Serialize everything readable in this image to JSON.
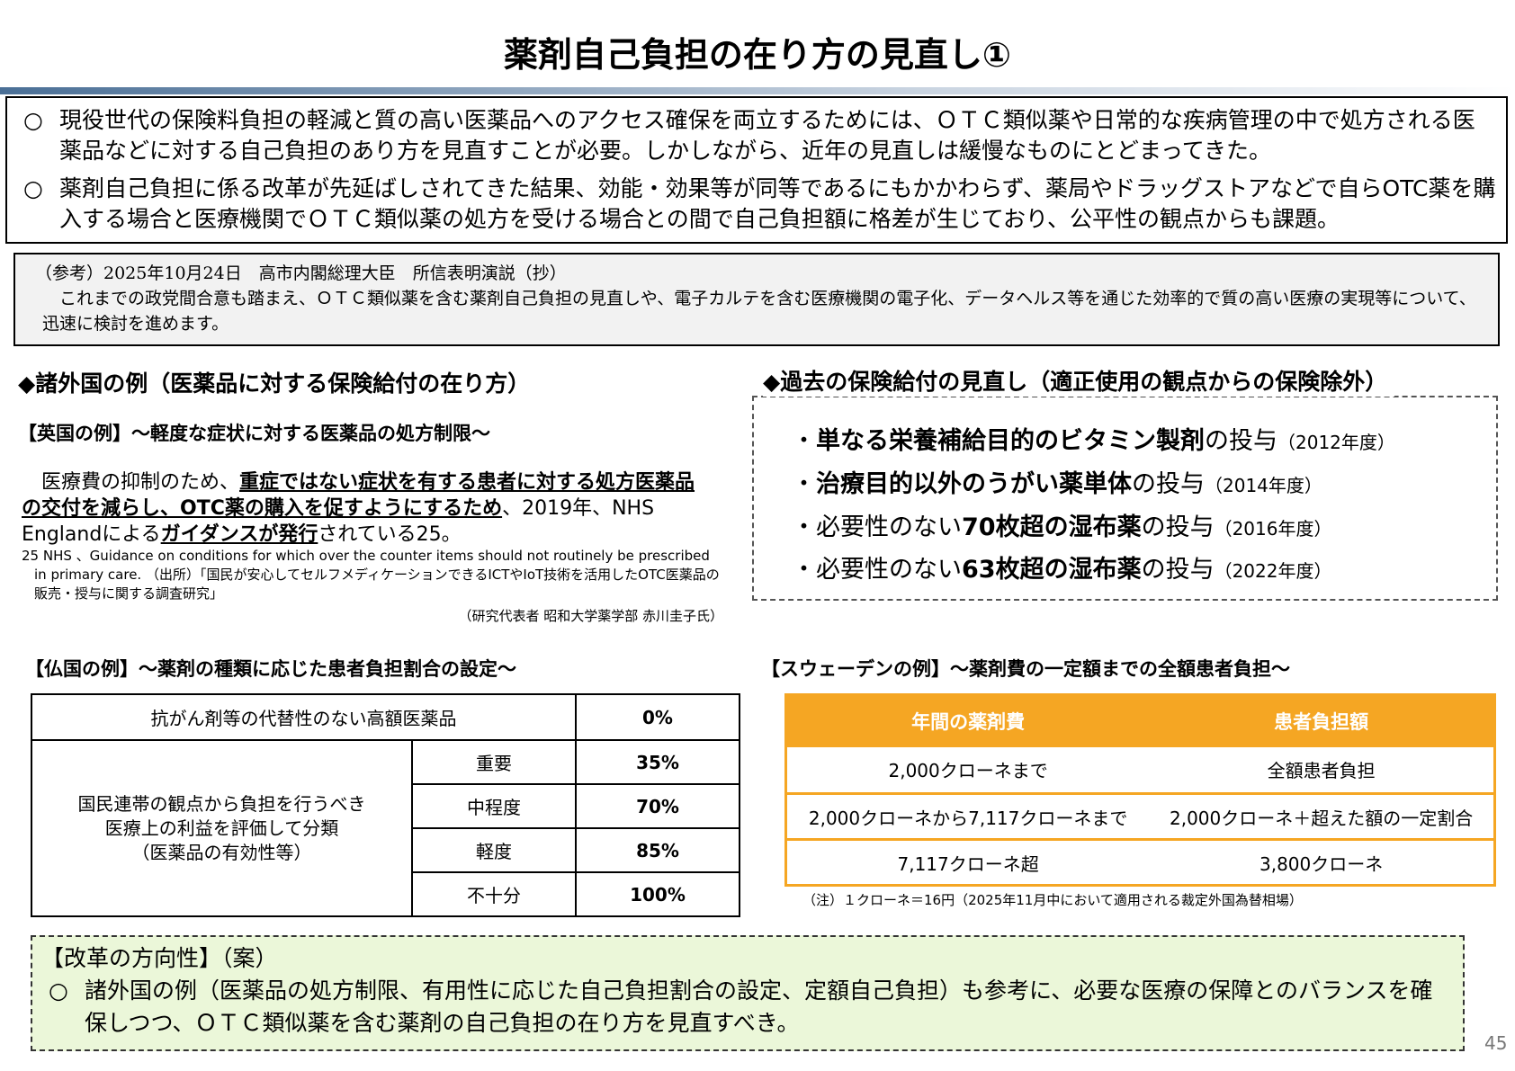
{
  "title": "薬剤自己負担の在り方の見直し①",
  "summary": {
    "bullet": "○",
    "items": [
      "現役世代の保険料負担の軽減と質の高い医薬品へのアクセス確保を両立するためには、ＯＴＣ類似薬や日常的な疾病管理の中で処方される医薬品などに対する自己負担のあり方を見直すことが必要。しかしながら、近年の見直しは緩慢なものにとどまってきた。",
      "薬剤自己負担に係る改革が先延ばしされてきた結果、効能・効果等が同等であるにもかかわらず、薬局やドラッグストアなどで自らOTC薬を購入する場合と医療機関でＯＴＣ類似薬の処方を受ける場合との間で自己負担額に格差が生じており、公平性の観点からも課題。"
    ]
  },
  "reference": {
    "header": "（参考）2025年10月24日　高市内閣総理大臣　所信表明演説（抄）",
    "body": "　これまでの政党間合意も踏まえ、ＯＴＣ類似薬を含む薬剤自己負担の見直しや、電子カルテを含む医療機関の電子化、データヘルス等を通じた効率的で質の高い医療の実現等について、迅速に検討を進めます。"
  },
  "left_heading": "◆諸外国の例（医薬品に対する保険給付の在り方）",
  "uk": {
    "heading": "【英国の例】～軽度な症状に対する医薬品の処方制限～",
    "t1": "　医療費の抑制のため、",
    "b1": "重症ではない症状を有する患者に対する処方医薬品の交付を減らし、OTC薬の購入を促すようにするため",
    "t2": "、2019年、NHS Englandによる",
    "b2": "ガイダンスが発行",
    "t3": "されている25。",
    "footnote": "25 NHS 、Guidance on conditions for which over the counter items should not routinely be prescribed in primary care. （出所）「国民が安心してセルフメディケーションできるICTやIoT技術を活用したOTC医薬品の販売・授与に関する調査研究」",
    "footnote_credit": "（研究代表者 昭和大学薬学部 赤川圭子氏）"
  },
  "right_heading": "◆過去の保険給付の見直し（適正使用の観点からの保険除外）",
  "past": [
    {
      "pre": "・",
      "bold": "単なる栄養補給目的のビタミン製剤",
      "post": "の投与",
      "year": "（2012年度）"
    },
    {
      "pre": "・",
      "bold": "治療目的以外のうがい薬単体",
      "post": "の投与",
      "year": "（2014年度）"
    },
    {
      "pre": "・必要性のない",
      "bold": "70枚超の湿布薬",
      "post": "の投与",
      "year": "（2016年度）"
    },
    {
      "pre": "・必要性のない",
      "bold": "63枚超の湿布薬",
      "post": "の投与",
      "year": "（2022年度）"
    }
  ],
  "france": {
    "heading": "【仏国の例】～薬剤の種類に応じた患者負担割合の設定～",
    "row0": {
      "label": "抗がん剤等の代替性のない高額医薬品",
      "value": "0%"
    },
    "group_label": "国民連帯の観点から負担を行うべき\n医療上の利益を評価して分類\n（医薬品の有効性等）",
    "rows": [
      {
        "label": "重要",
        "value": "35%"
      },
      {
        "label": "中程度",
        "value": "70%"
      },
      {
        "label": "軽度",
        "value": "85%"
      },
      {
        "label": "不十分",
        "value": "100%"
      }
    ]
  },
  "sweden": {
    "heading": "【スウェーデンの例】～薬剤費の一定額までの全額患者負担～",
    "headers": [
      "年間の薬剤費",
      "患者負担額"
    ],
    "rows": [
      [
        "2,000クローネまで",
        "全額患者負担"
      ],
      [
        "2,000クローネから7,117クローネまで",
        "2,000クローネ＋超えた額の一定割合"
      ],
      [
        "7,117クローネ超",
        "3,800クローネ"
      ]
    ],
    "note": "（注）１クローネ＝16円（2025年11月中において適用される裁定外国為替相場）",
    "accent": "#f5a623"
  },
  "reform": {
    "heading": "【改革の方向性】（案）",
    "bullet": "○",
    "text": "諸外国の例（医薬品の処方制限、有用性に応じた自己負担割合の設定、定額自己負担）も参考に、必要な医療の保障とのバランスを確保しつつ、ＯＴＣ類似薬を含む薬剤の自己負担の在り方を見直すべき。"
  },
  "page_number": "45"
}
